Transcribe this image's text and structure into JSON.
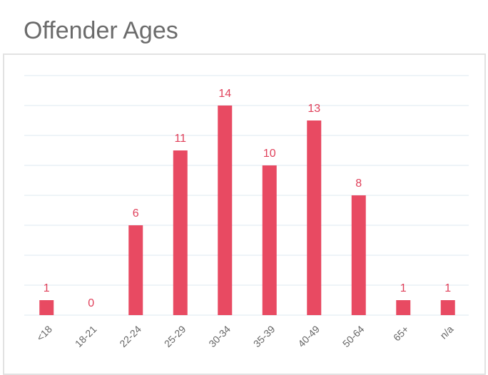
{
  "chart_data": {
    "type": "bar",
    "title": "Offender Ages",
    "categories": [
      "<18",
      "18-21",
      "22-24",
      "25-29",
      "30-34",
      "35-39",
      "40-49",
      "50-64",
      "65+",
      "n/a"
    ],
    "values": [
      1,
      0,
      6,
      11,
      14,
      10,
      13,
      8,
      1,
      1
    ],
    "color": "#e84a62",
    "ylim": [
      0,
      16
    ],
    "yticks": [
      0,
      2,
      4,
      6,
      8,
      10,
      12,
      14,
      16
    ],
    "grid": true
  }
}
